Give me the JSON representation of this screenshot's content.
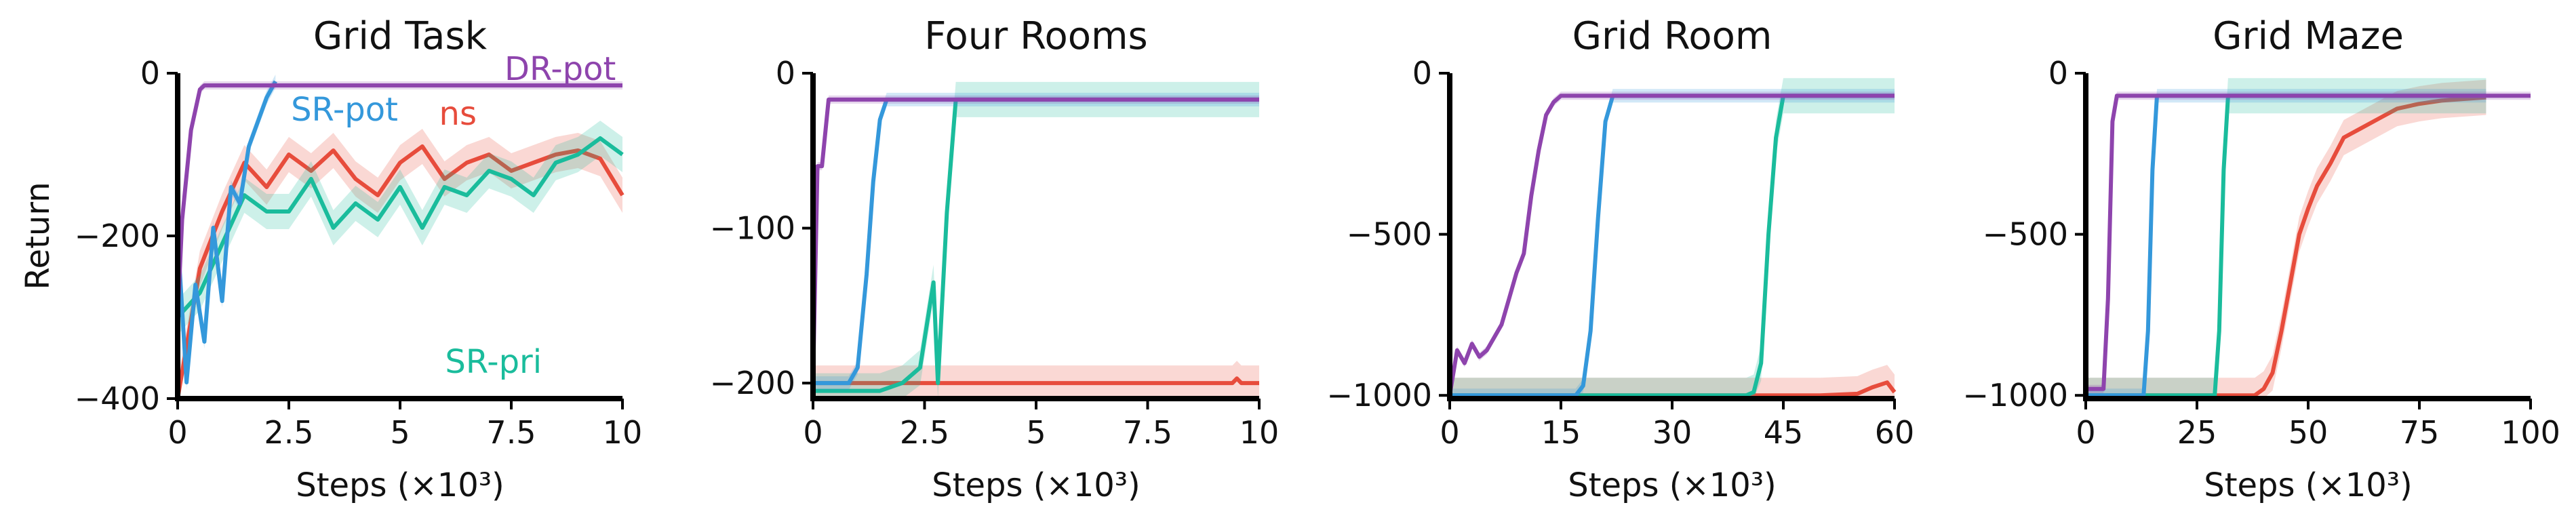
{
  "colors": {
    "DR-pot": "#8e44ad",
    "SR-pot": "#3498db",
    "ns": "#e74c3c",
    "SR-pri": "#1abc9c"
  },
  "chart_data": [
    {
      "type": "line",
      "title": "Grid Task",
      "xlabel": "Steps (×10³)",
      "ylabel": "Return",
      "xlim": [
        0,
        10
      ],
      "ylim": [
        -400,
        0
      ],
      "xticks": [
        0,
        2.5,
        5,
        7.5,
        10
      ],
      "xtick_labels": [
        "0",
        "2.5",
        "5",
        "7.5",
        "10"
      ],
      "yticks": [
        -400,
        -200,
        0
      ],
      "ytick_labels": [
        "−400",
        "−200",
        "0"
      ],
      "grid": false,
      "annotations": [
        {
          "text": "DR-pot",
          "series": "DR-pot",
          "x": 8.6,
          "y": 5
        },
        {
          "text": "SR-pot",
          "series": "SR-pot",
          "x": 3.75,
          "y": -45
        },
        {
          "text": "ns",
          "series": "ns",
          "x": 6.3,
          "y": -50
        },
        {
          "text": "SR-pri",
          "series": "SR-pri",
          "x": 7.1,
          "y": -355
        }
      ],
      "series": [
        {
          "name": "DR-pot",
          "x": [
            0,
            0.1,
            0.3,
            0.5,
            0.6,
            1,
            3,
            5,
            7,
            10
          ],
          "y": [
            -300,
            -180,
            -70,
            -20,
            -15,
            -15,
            -15,
            -15,
            -15,
            -15
          ]
        },
        {
          "name": "SR-pot",
          "x": [
            0,
            0.2,
            0.4,
            0.6,
            0.8,
            1.0,
            1.2,
            1.4,
            1.6,
            1.8,
            2.0,
            2.2
          ],
          "y": [
            -200,
            -380,
            -260,
            -330,
            -190,
            -280,
            -140,
            -160,
            -90,
            -60,
            -30,
            -10
          ]
        },
        {
          "name": "ns",
          "x": [
            0,
            0.5,
            1,
            1.5,
            2,
            2.5,
            3,
            3.5,
            4,
            4.5,
            5,
            5.5,
            6,
            6.5,
            7,
            7.5,
            8,
            8.5,
            9,
            9.5,
            10
          ],
          "y": [
            -400,
            -240,
            -170,
            -110,
            -140,
            -100,
            -120,
            -95,
            -130,
            -150,
            -110,
            -90,
            -130,
            -110,
            -100,
            -120,
            -110,
            -100,
            -95,
            -105,
            -150
          ]
        },
        {
          "name": "SR-pri",
          "x": [
            0,
            0.5,
            1,
            1.5,
            2,
            2.5,
            3,
            3.5,
            4,
            4.5,
            5,
            5.5,
            6,
            6.5,
            7,
            7.5,
            8,
            8.5,
            9,
            9.5,
            10
          ],
          "y": [
            -300,
            -270,
            -210,
            -150,
            -170,
            -170,
            -130,
            -190,
            -160,
            -180,
            -140,
            -190,
            -140,
            -150,
            -120,
            -130,
            -150,
            -110,
            -100,
            -80,
            -100
          ]
        }
      ]
    },
    {
      "type": "line",
      "title": "Four Rooms",
      "xlabel": "Steps (×10³)",
      "ylabel": "",
      "xlim": [
        0,
        10
      ],
      "ylim": [
        -210,
        0
      ],
      "xticks": [
        0,
        2.5,
        5,
        7.5,
        10
      ],
      "xtick_labels": [
        "0",
        "2.5",
        "5",
        "7.5",
        "10"
      ],
      "yticks": [
        -200,
        -100,
        0
      ],
      "ytick_labels": [
        "−200",
        "−100",
        "0"
      ],
      "grid": false,
      "series": [
        {
          "name": "DR-pot",
          "x": [
            0,
            0.1,
            0.2,
            0.35,
            0.45,
            1,
            4,
            7,
            10
          ],
          "y": [
            -200,
            -60,
            -60,
            -17,
            -17,
            -17,
            -17,
            -17,
            -17
          ]
        },
        {
          "name": "SR-pot",
          "x": [
            0,
            0.8,
            1.0,
            1.2,
            1.35,
            1.5,
            1.65,
            10
          ],
          "y": [
            -200,
            -200,
            -190,
            -130,
            -70,
            -30,
            -17,
            -17
          ]
        },
        {
          "name": "ns",
          "x": [
            0,
            2,
            5,
            9.4,
            9.5,
            9.6,
            10
          ],
          "y": [
            -200,
            -200,
            -200,
            -200,
            -197,
            -200,
            -200
          ]
        },
        {
          "name": "SR-pri",
          "x": [
            0,
            1.5,
            2.0,
            2.4,
            2.7,
            2.8,
            3.0,
            3.2,
            10
          ],
          "y": [
            -205,
            -205,
            -200,
            -190,
            -135,
            -200,
            -90,
            -17,
            -17
          ]
        }
      ]
    },
    {
      "type": "line",
      "title": "Grid Room",
      "xlabel": "Steps (×10³)",
      "ylabel": "",
      "xlim": [
        0,
        60
      ],
      "ylim": [
        -1010,
        0
      ],
      "xticks": [
        0,
        15,
        30,
        45,
        60
      ],
      "xtick_labels": [
        "0",
        "15",
        "30",
        "45",
        "60"
      ],
      "yticks": [
        -1000,
        -500,
        0
      ],
      "ytick_labels": [
        "−1000",
        "−500",
        "0"
      ],
      "grid": false,
      "series": [
        {
          "name": "DR-pot",
          "x": [
            0,
            1,
            2,
            3,
            4,
            5,
            6,
            7,
            8,
            9,
            10,
            11,
            12,
            13,
            14,
            15,
            20,
            30,
            40,
            50,
            60
          ],
          "y": [
            -1000,
            -860,
            -900,
            -840,
            -880,
            -860,
            -820,
            -780,
            -700,
            -620,
            -560,
            -380,
            -240,
            -130,
            -90,
            -70,
            -70,
            -70,
            -70,
            -70,
            -70
          ]
        },
        {
          "name": "SR-pot",
          "x": [
            0,
            17,
            18,
            19,
            20,
            21,
            22,
            60
          ],
          "y": [
            -1000,
            -1000,
            -970,
            -800,
            -450,
            -150,
            -70,
            -70
          ]
        },
        {
          "name": "ns",
          "x": [
            0,
            30,
            50,
            55,
            57,
            59,
            60
          ],
          "y": [
            -1000,
            -1000,
            -1000,
            -995,
            -975,
            -960,
            -990
          ]
        },
        {
          "name": "SR-pri",
          "x": [
            0,
            40,
            41,
            42,
            43,
            44,
            45,
            60
          ],
          "y": [
            -1000,
            -1000,
            -990,
            -900,
            -500,
            -200,
            -70,
            -70
          ]
        }
      ]
    },
    {
      "type": "line",
      "title": "Grid Maze",
      "xlabel": "Steps (×10³)",
      "ylabel": "",
      "xlim": [
        0,
        100
      ],
      "ylim": [
        -1010,
        0
      ],
      "xticks": [
        0,
        25,
        50,
        75,
        100
      ],
      "xtick_labels": [
        "0",
        "25",
        "50",
        "75",
        "100"
      ],
      "yticks": [
        -1000,
        -500,
        0
      ],
      "ytick_labels": [
        "−1000",
        "−500",
        "0"
      ],
      "grid": false,
      "series": [
        {
          "name": "DR-pot",
          "x": [
            0,
            4,
            5,
            6,
            7,
            100
          ],
          "y": [
            -980,
            -980,
            -700,
            -150,
            -70,
            -70
          ]
        },
        {
          "name": "SR-pot",
          "x": [
            0,
            13,
            14,
            15,
            16,
            90
          ],
          "y": [
            -1000,
            -1000,
            -800,
            -300,
            -70,
            -70
          ]
        },
        {
          "name": "SR-pri",
          "x": [
            0,
            29,
            30,
            31,
            32,
            90
          ],
          "y": [
            -1000,
            -1000,
            -800,
            -300,
            -70,
            -70
          ]
        },
        {
          "name": "ns",
          "x": [
            0,
            38,
            40,
            42,
            44,
            46,
            48,
            50,
            52,
            55,
            58,
            62,
            66,
            70,
            75,
            80,
            85,
            90
          ],
          "y": [
            -1000,
            -1000,
            -980,
            -930,
            -800,
            -650,
            -500,
            -420,
            -350,
            -280,
            -200,
            -170,
            -140,
            -110,
            -95,
            -85,
            -80,
            -75
          ]
        }
      ]
    }
  ]
}
